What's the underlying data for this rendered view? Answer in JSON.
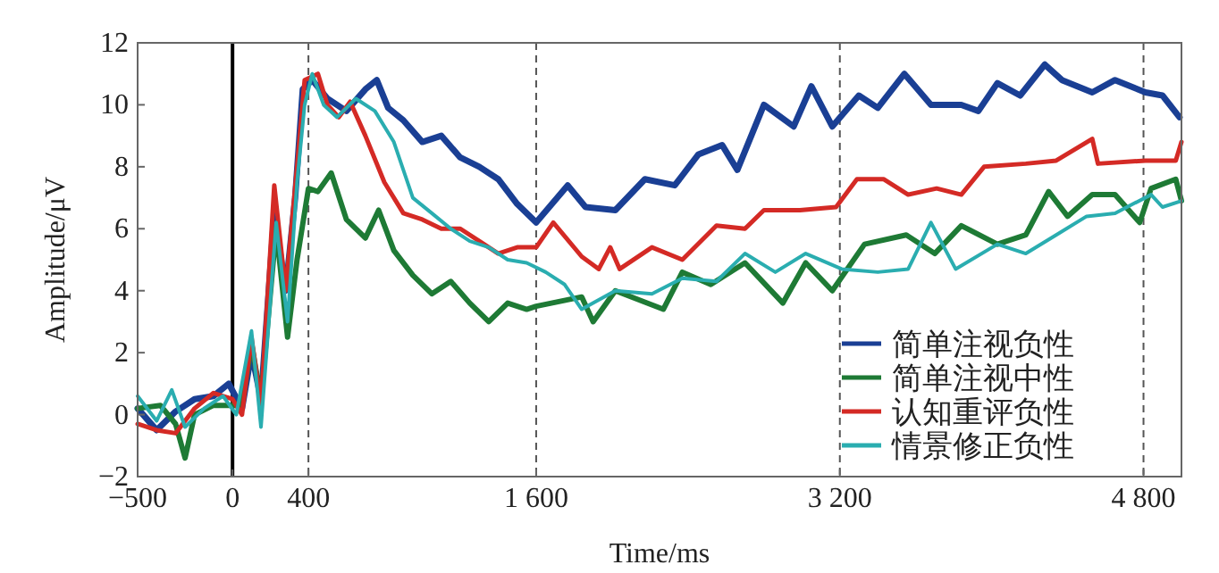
{
  "chart_data": {
    "type": "line",
    "xlabel": "Time/ms",
    "ylabel": "Amplitude/μV",
    "xlim": [
      -500,
      5000
    ],
    "ylim": [
      -2,
      12
    ],
    "xticks": [
      {
        "value": -500,
        "label": "−500"
      },
      0,
      400,
      {
        "value": 1600,
        "label": "1 600"
      },
      {
        "value": 3200,
        "label": "3 200"
      },
      {
        "value": 4800,
        "label": "4 800"
      }
    ],
    "yticks": [
      -2,
      0,
      2,
      4,
      6,
      8,
      10,
      12
    ],
    "grid": false,
    "legend": "bottom right",
    "marker": "none",
    "line_style": "solid",
    "ref_lines": [
      {
        "axis": "x",
        "value": 0,
        "color": "#000000",
        "line_style": "solid"
      },
      {
        "axis": "x",
        "value": 400,
        "color": "#555555",
        "line_style": "dashed"
      },
      {
        "axis": "x",
        "value": 1600,
        "color": "#555555",
        "line_style": "dashed"
      },
      {
        "axis": "x",
        "value": 3200,
        "color": "#555555",
        "line_style": "dashed"
      },
      {
        "axis": "x",
        "value": 4800,
        "color": "#555555",
        "line_style": "dashed"
      }
    ],
    "series": [
      {
        "name": "简单注视负性",
        "color": "#1a3f94",
        "x": [
          -500,
          -400,
          -300,
          -200,
          -100,
          -20,
          50,
          100,
          150,
          220,
          280,
          330,
          370,
          420,
          500,
          600,
          700,
          760,
          820,
          900,
          1000,
          1100,
          1200,
          1300,
          1400,
          1500,
          1600,
          1766,
          1860,
          2017,
          2173,
          2330,
          2455,
          2580,
          2660,
          2800,
          2957,
          3050,
          3160,
          3300,
          3400,
          3540,
          3680,
          3840,
          3930,
          4030,
          4150,
          4280,
          4370,
          4530,
          4650,
          4810,
          4900,
          4990
        ],
        "values": [
          0.2,
          -0.5,
          0.1,
          0.5,
          0.6,
          1.0,
          0.2,
          2.0,
          0.5,
          6.5,
          4.0,
          7.0,
          10.5,
          10.8,
          10.2,
          9.8,
          10.5,
          10.8,
          9.9,
          9.5,
          8.8,
          9.0,
          8.3,
          8.0,
          7.6,
          6.8,
          6.2,
          7.4,
          6.7,
          6.6,
          7.6,
          7.4,
          8.4,
          8.7,
          7.9,
          10.0,
          9.3,
          10.6,
          9.3,
          10.3,
          9.9,
          11.0,
          10.0,
          10.0,
          9.8,
          10.7,
          10.3,
          11.3,
          10.8,
          10.4,
          10.8,
          10.4,
          10.3,
          9.6
        ]
      },
      {
        "name": "简单注视中性",
        "color": "#1e7a35",
        "x": [
          -500,
          -380,
          -300,
          -250,
          -200,
          -100,
          0,
          50,
          100,
          150,
          230,
          290,
          340,
          400,
          450,
          520,
          600,
          700,
          770,
          850,
          950,
          1050,
          1150,
          1250,
          1350,
          1450,
          1550,
          1600,
          1840,
          1900,
          2017,
          2270,
          2370,
          2520,
          2700,
          2900,
          3020,
          3160,
          3330,
          3550,
          3700,
          3840,
          4030,
          4180,
          4300,
          4400,
          4530,
          4650,
          4780,
          4840,
          4970,
          5000
        ],
        "values": [
          0.2,
          0.3,
          -0.3,
          -1.4,
          0.0,
          0.3,
          0.3,
          0.3,
          2.3,
          0.5,
          6.0,
          2.5,
          5.0,
          7.3,
          7.2,
          7.8,
          6.3,
          5.7,
          6.6,
          5.3,
          4.5,
          3.9,
          4.3,
          3.6,
          3.0,
          3.6,
          3.4,
          3.5,
          3.8,
          3.0,
          4.0,
          3.4,
          4.6,
          4.2,
          4.9,
          3.6,
          4.9,
          4.0,
          5.5,
          5.8,
          5.2,
          6.1,
          5.5,
          5.8,
          7.2,
          6.4,
          7.1,
          7.1,
          6.2,
          7.3,
          7.6,
          6.9
        ]
      },
      {
        "name": "认知重评负性",
        "color": "#d42a25",
        "x": [
          -500,
          -400,
          -300,
          -200,
          -100,
          0,
          50,
          100,
          150,
          220,
          280,
          340,
          380,
          450,
          500,
          560,
          620,
          700,
          800,
          900,
          1000,
          1100,
          1200,
          1300,
          1400,
          1500,
          1600,
          1690,
          1840,
          1930,
          1990,
          2040,
          2210,
          2370,
          2550,
          2700,
          2800,
          2990,
          3180,
          3290,
          3430,
          3560,
          3710,
          3840,
          3960,
          4180,
          4340,
          4530,
          4560,
          4810,
          4970,
          5000
        ],
        "values": [
          -0.3,
          -0.5,
          -0.6,
          0.2,
          0.7,
          0.5,
          0.0,
          2.5,
          0.3,
          7.4,
          4.0,
          8.0,
          10.8,
          11.0,
          10.0,
          9.6,
          10.1,
          9.0,
          7.5,
          6.5,
          6.3,
          6.0,
          6.0,
          5.6,
          5.2,
          5.4,
          5.4,
          6.2,
          5.1,
          4.7,
          5.4,
          4.7,
          5.4,
          5.0,
          6.1,
          6.0,
          6.6,
          6.6,
          6.7,
          7.6,
          7.6,
          7.1,
          7.3,
          7.1,
          8.0,
          8.1,
          8.2,
          8.9,
          8.1,
          8.2,
          8.2,
          8.8
        ]
      },
      {
        "name": "情景修正负性",
        "color": "#2aadb0",
        "x": [
          -500,
          -400,
          -320,
          -250,
          -150,
          -50,
          20,
          100,
          150,
          230,
          290,
          340,
          380,
          420,
          480,
          550,
          650,
          750,
          850,
          950,
          1050,
          1150,
          1250,
          1350,
          1450,
          1550,
          1650,
          1750,
          1840,
          2017,
          2210,
          2370,
          2550,
          2700,
          2860,
          3020,
          3210,
          3400,
          3560,
          3680,
          3810,
          4030,
          4180,
          4340,
          4500,
          4650,
          4840,
          4900,
          5000
        ],
        "values": [
          0.6,
          -0.2,
          0.8,
          -0.4,
          0.2,
          0.6,
          0.0,
          2.7,
          -0.4,
          6.2,
          3.0,
          7.5,
          10.0,
          11.0,
          10.0,
          9.6,
          10.2,
          9.8,
          8.8,
          7.0,
          6.5,
          6.0,
          5.6,
          5.4,
          5.0,
          4.9,
          4.6,
          4.2,
          3.4,
          4.0,
          3.9,
          4.4,
          4.3,
          5.2,
          4.6,
          5.2,
          4.7,
          4.6,
          4.7,
          6.2,
          4.7,
          5.5,
          5.2,
          5.8,
          6.4,
          6.5,
          7.1,
          6.7,
          6.9
        ]
      }
    ]
  }
}
